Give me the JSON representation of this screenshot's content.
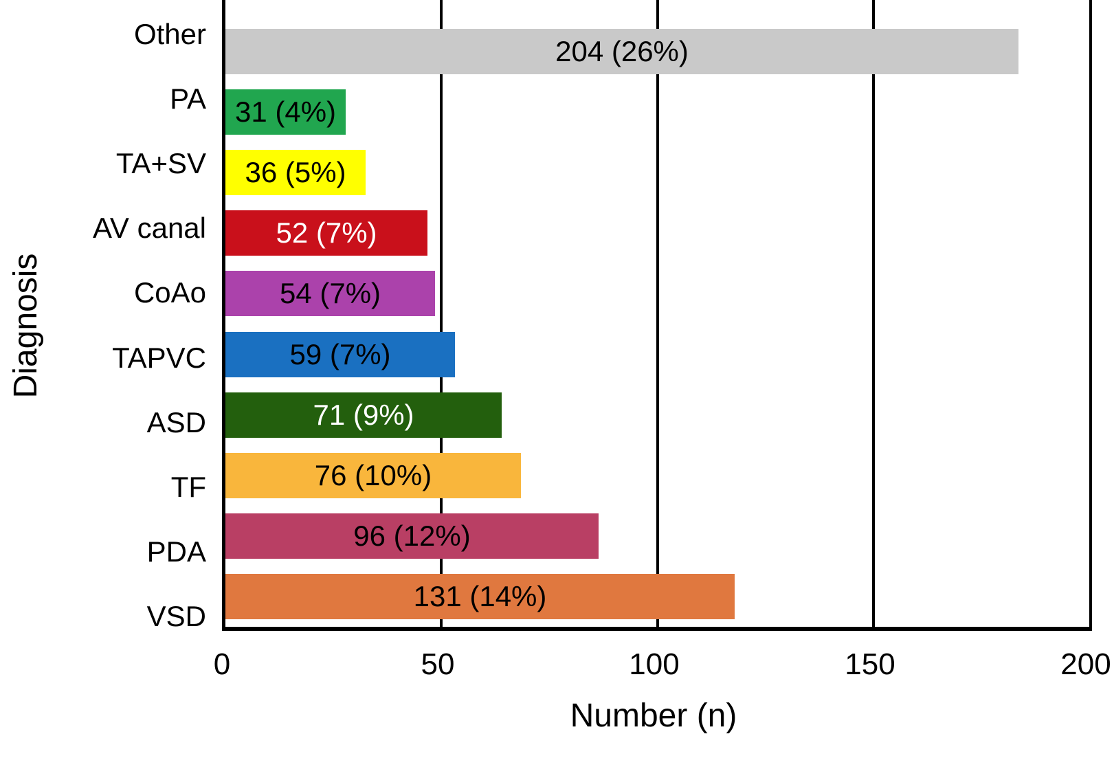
{
  "chart_data": {
    "type": "bar",
    "orientation": "horizontal",
    "xlabel": "Number (n)",
    "ylabel": "Diagnosis",
    "xlim": [
      0,
      200
    ],
    "xticks": [
      0,
      50,
      100,
      150,
      200
    ],
    "grid": "vertical black lines at ticks, bars drawn over gridlines",
    "legend": "none",
    "bar_display_scale": 0.9,
    "categories": [
      "Other",
      "PA",
      "TA+SV",
      "AV canal",
      "CoAo",
      "TAPVC",
      "ASD",
      "TF",
      "PDA",
      "VSD"
    ],
    "values": [
      204,
      31,
      36,
      52,
      54,
      59,
      71,
      76,
      96,
      131
    ],
    "percents": [
      26,
      4,
      5,
      7,
      7,
      7,
      9,
      10,
      12,
      14
    ],
    "bar_labels": [
      "204 (26%)",
      "31 (4%)",
      "36 (5%)",
      "52 (7%)",
      "54 (7%)",
      "59 (7%)",
      "71 (9%)",
      "76 (10%)",
      "96 (12%)",
      "131 (14%)"
    ],
    "bar_colors": [
      "#c9c9c9",
      "#21a64f",
      "#ffff00",
      "#c9101b",
      "#ab42ab",
      "#1a70c1",
      "#235f0d",
      "#f9b63c",
      "#b93f64",
      "#e0783f"
    ],
    "bar_label_colors": [
      "#000000",
      "#000000",
      "#000000",
      "#ffffff",
      "#000000",
      "#000000",
      "#ffffff",
      "#000000",
      "#000000",
      "#000000"
    ],
    "axis_color": "#000000"
  }
}
